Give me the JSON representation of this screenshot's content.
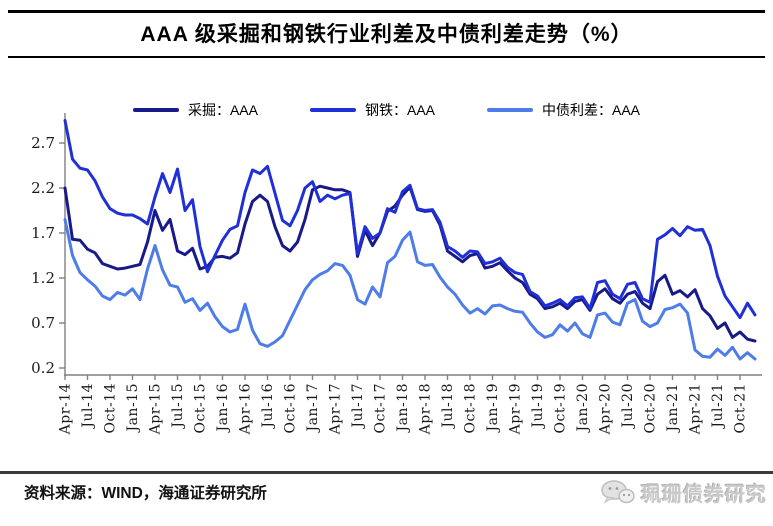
{
  "title": "AAA 级采掘和钢铁行业利差及中债利差走势（%）",
  "legend": [
    {
      "label": "采掘：AAA",
      "color": "#171a88"
    },
    {
      "label": "钢铁：AAA",
      "color": "#2030d8"
    },
    {
      "label": "中债利差：AAA",
      "color": "#4e7ce8"
    }
  ],
  "footer": {
    "source": "资料来源：WIND，海通证券研究所",
    "watermark": "珮珊债券研究"
  },
  "chart_data": {
    "type": "line",
    "x_start": "Apr-14",
    "x_end": "Dec-21",
    "x_freq": "monthly",
    "x_tick_labels": [
      "Apr-14",
      "Jul-14",
      "Oct-14",
      "Jan-15",
      "Apr-15",
      "Jul-15",
      "Oct-15",
      "Jan-16",
      "Apr-16",
      "Jul-16",
      "Oct-16",
      "Jan-17",
      "Apr-17",
      "Jul-17",
      "Oct-17",
      "Jan-18",
      "Apr-18",
      "Jul-18",
      "Oct-18",
      "Jan-19",
      "Apr-19",
      "Jul-19",
      "Oct-19",
      "Jan-20",
      "Apr-20",
      "Jul-20",
      "Oct-20",
      "Jan-21",
      "Apr-21",
      "Jul-21",
      "Oct-21"
    ],
    "y_ticks": [
      0.2,
      0.7,
      1.2,
      1.7,
      2.2,
      2.7
    ],
    "ylim": [
      0.2,
      2.7
    ],
    "grid": false,
    "legend_position": "top",
    "axis_color": "#808080",
    "tick_label_color": "#1a1a1a",
    "series": [
      {
        "name": "采掘：AAA",
        "color": "#171a88",
        "values": [
          2.2,
          1.63,
          1.62,
          1.52,
          1.48,
          1.36,
          1.33,
          1.3,
          1.31,
          1.33,
          1.35,
          1.6,
          1.95,
          1.73,
          1.85,
          1.5,
          1.46,
          1.53,
          1.3,
          1.33,
          1.43,
          1.44,
          1.42,
          1.48,
          1.8,
          2.05,
          2.12,
          2.05,
          1.77,
          1.56,
          1.5,
          1.6,
          1.85,
          2.18,
          2.22,
          2.2,
          2.18,
          2.18,
          2.15,
          1.44,
          1.73,
          1.56,
          1.7,
          1.94,
          2.0,
          2.12,
          2.21,
          1.96,
          1.94,
          1.95,
          1.79,
          1.5,
          1.44,
          1.38,
          1.45,
          1.47,
          1.31,
          1.33,
          1.37,
          1.28,
          1.2,
          1.15,
          1.02,
          0.97,
          0.86,
          0.88,
          0.92,
          0.86,
          0.94,
          0.96,
          0.84,
          1.02,
          1.08,
          0.97,
          0.92,
          1.02,
          1.05,
          0.92,
          0.86,
          1.16,
          1.23,
          1.02,
          1.06,
          0.99,
          1.07,
          0.86,
          0.78,
          0.64,
          0.7,
          0.54,
          0.6,
          0.52,
          0.5
        ]
      },
      {
        "name": "钢铁：AAA",
        "color": "#2030d8",
        "values": [
          2.95,
          2.52,
          2.42,
          2.4,
          2.28,
          2.1,
          1.97,
          1.92,
          1.9,
          1.9,
          1.86,
          1.8,
          2.1,
          2.36,
          2.15,
          2.41,
          1.95,
          2.07,
          1.55,
          1.27,
          1.45,
          1.62,
          1.74,
          1.78,
          2.15,
          2.4,
          2.36,
          2.44,
          2.14,
          1.84,
          1.78,
          1.95,
          2.2,
          2.27,
          2.05,
          2.12,
          2.08,
          2.12,
          2.14,
          1.47,
          1.77,
          1.64,
          1.7,
          1.97,
          1.93,
          2.16,
          2.23,
          1.97,
          1.95,
          1.96,
          1.82,
          1.55,
          1.5,
          1.43,
          1.5,
          1.49,
          1.36,
          1.38,
          1.42,
          1.32,
          1.26,
          1.24,
          1.05,
          1.0,
          0.89,
          0.92,
          0.96,
          0.89,
          0.98,
          0.99,
          0.86,
          1.15,
          1.17,
          1.02,
          0.97,
          1.13,
          1.15,
          0.97,
          0.93,
          1.63,
          1.68,
          1.75,
          1.67,
          1.77,
          1.73,
          1.74,
          1.56,
          1.22,
          1.0,
          0.88,
          0.76,
          0.92,
          0.79
        ]
      },
      {
        "name": "中债利差：AAA",
        "color": "#4e7ce8",
        "values": [
          1.85,
          1.45,
          1.26,
          1.18,
          1.11,
          1.0,
          0.96,
          1.04,
          1.01,
          1.08,
          0.96,
          1.3,
          1.56,
          1.29,
          1.12,
          1.1,
          0.93,
          0.97,
          0.84,
          0.92,
          0.77,
          0.66,
          0.6,
          0.63,
          0.91,
          0.62,
          0.47,
          0.44,
          0.49,
          0.56,
          0.73,
          0.9,
          1.07,
          1.18,
          1.24,
          1.28,
          1.36,
          1.34,
          1.23,
          0.96,
          0.91,
          1.1,
          0.99,
          1.37,
          1.44,
          1.62,
          1.71,
          1.38,
          1.34,
          1.35,
          1.21,
          1.1,
          1.02,
          0.9,
          0.81,
          0.86,
          0.8,
          0.89,
          0.9,
          0.86,
          0.83,
          0.82,
          0.7,
          0.6,
          0.54,
          0.57,
          0.68,
          0.61,
          0.7,
          0.58,
          0.54,
          0.79,
          0.81,
          0.71,
          0.68,
          0.92,
          0.96,
          0.72,
          0.66,
          0.7,
          0.85,
          0.87,
          0.91,
          0.81,
          0.4,
          0.33,
          0.32,
          0.41,
          0.34,
          0.43,
          0.3,
          0.37,
          0.3
        ]
      }
    ]
  }
}
